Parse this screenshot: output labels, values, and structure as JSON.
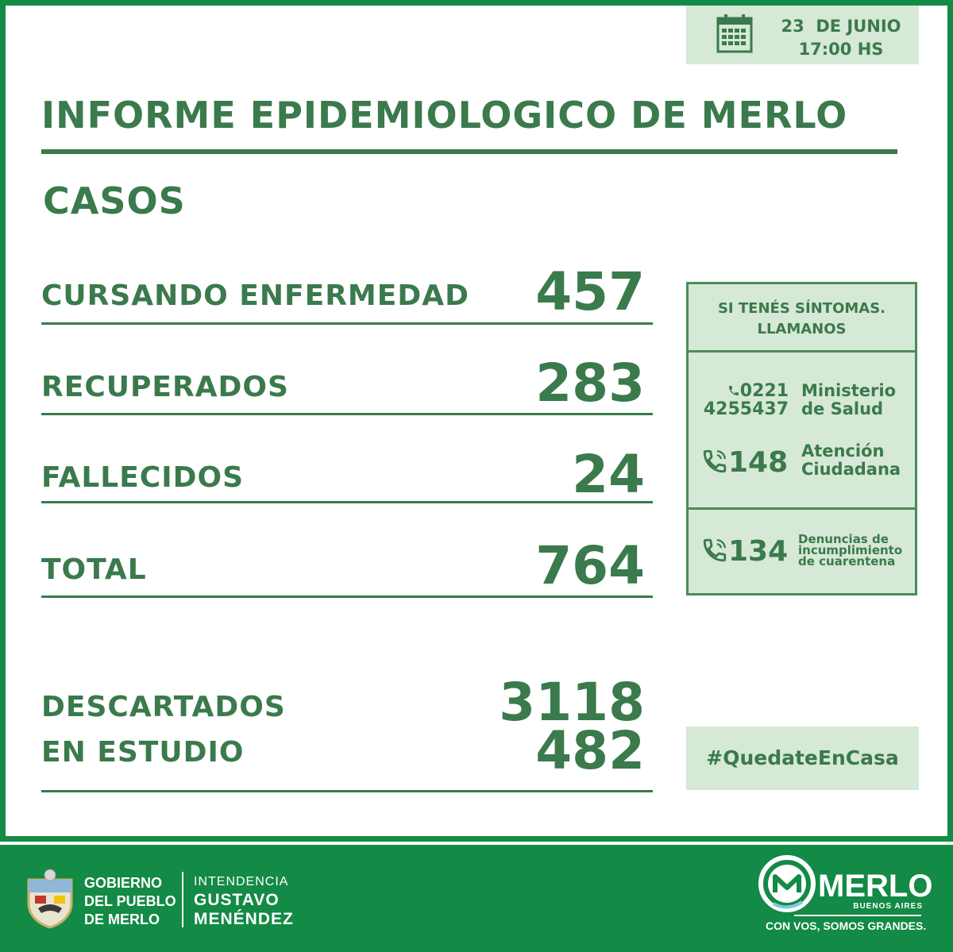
{
  "header": {
    "date": "23  DE JUNIO",
    "time": "17:00 HS",
    "title": "INFORME EPIDEMIOLOGICO DE MERLO",
    "subtitle": "CASOS"
  },
  "stats": [
    {
      "label": "CURSANDO ENFERMEDAD",
      "value": "457"
    },
    {
      "label": "RECUPERADOS",
      "value": "283"
    },
    {
      "label": "FALLECIDOS",
      "value": "24"
    },
    {
      "label": "TOTAL",
      "value": "764"
    }
  ],
  "extra_stats": [
    {
      "label": "DESCARTADOS",
      "value": "3118"
    },
    {
      "label": "EN ESTUDIO",
      "value": "482"
    }
  ],
  "phone_panel": {
    "heading_line1": "SI TENÉS SÍNTOMAS.",
    "heading_line2": "LLAMANOS",
    "ministerio_number_line1": "0221",
    "ministerio_number_line2": "4255437",
    "ministerio_label_line1": "Ministerio",
    "ministerio_label_line2": "de Salud",
    "atencion_number": "148",
    "atencion_label_line1": "Atención",
    "atencion_label_line2": "Ciudadana",
    "denuncias_number": "134",
    "denuncias_label_line1": "Denuncias de",
    "denuncias_label_line2": "incumplimiento",
    "denuncias_label_line3": "de cuarentena"
  },
  "hashtag": "#QuedateEnCasa",
  "footer": {
    "gob_line1": "GOBIERNO",
    "gob_line2": "DEL PUEBLO",
    "gob_line3": "DE MERLO",
    "intendencia": "INTENDENCIA",
    "name_line1": "GUSTAVO",
    "name_line2": "MENÉNDEZ",
    "brand": "MERLO",
    "brand_sub": "BUENOS AIRES",
    "slogan": "CON VOS, SOMOS GRANDES."
  },
  "colors": {
    "primary_green": "#138a45",
    "text_green": "#3a7a4c",
    "panel_bg": "#d6e8d6"
  }
}
